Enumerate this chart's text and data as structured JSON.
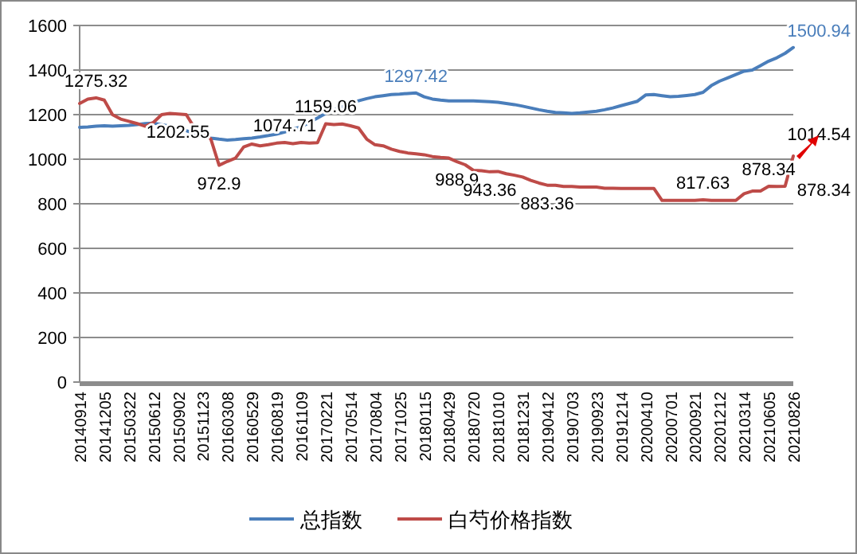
{
  "chart_data": {
    "type": "line",
    "categories": [
      "20140914",
      null,
      null,
      "20141205",
      null,
      null,
      "20150322",
      null,
      null,
      "20150612",
      null,
      null,
      "20150902",
      null,
      null,
      "20151123",
      null,
      null,
      "20160308",
      null,
      null,
      "20160529",
      null,
      null,
      "20160819",
      null,
      null,
      "20161109",
      null,
      null,
      "20170221",
      null,
      null,
      "20170514",
      null,
      null,
      "20170804",
      null,
      null,
      "20171025",
      null,
      null,
      "20180115",
      null,
      null,
      "20180429",
      null,
      null,
      "20180720",
      null,
      null,
      "20181010",
      null,
      null,
      "20181231",
      null,
      null,
      "20190412",
      null,
      null,
      "20190703",
      null,
      null,
      "20190923",
      null,
      null,
      "20191214",
      null,
      null,
      "20200410",
      null,
      null,
      "20200701",
      null,
      null,
      "20200921",
      null,
      null,
      "20201212",
      null,
      null,
      "20210314",
      null,
      null,
      "20210605",
      null,
      null,
      "20210826"
    ],
    "series": [
      {
        "name": "总指数",
        "color": "#4a7ebb",
        "values": [
          1143,
          1145,
          1148,
          1150,
          1148,
          1150,
          1152,
          1155,
          1160,
          1162,
          1155,
          1148,
          1140,
          1128,
          1115,
          1105,
          1095,
          1090,
          1086,
          1088,
          1092,
          1095,
          1100,
          1106,
          1112,
          1122,
          1135,
          1145,
          1165,
          1185,
          1205,
          1220,
          1235,
          1250,
          1262,
          1272,
          1280,
          1285,
          1290,
          1292,
          1295,
          1297.42,
          1280,
          1270,
          1265,
          1262,
          1262,
          1262,
          1262,
          1260,
          1258,
          1255,
          1250,
          1245,
          1238,
          1230,
          1222,
          1215,
          1210,
          1208,
          1205,
          1208,
          1212,
          1215,
          1222,
          1230,
          1240,
          1250,
          1260,
          1288,
          1290,
          1285,
          1280,
          1282,
          1286,
          1290,
          1300,
          1330,
          1350,
          1365,
          1380,
          1395,
          1400,
          1420,
          1440,
          1455,
          1475,
          1500.94
        ],
        "value_labels": [
          null,
          null,
          null,
          null,
          null,
          null,
          null,
          null,
          null,
          null,
          null,
          null,
          null,
          null,
          null,
          null,
          null,
          null,
          null,
          null,
          null,
          null,
          null,
          null,
          null,
          null,
          null,
          null,
          null,
          null,
          null,
          null,
          null,
          null,
          null,
          null,
          null,
          null,
          null,
          null,
          null,
          "1297.42",
          null,
          null,
          null,
          null,
          null,
          null,
          null,
          null,
          null,
          null,
          null,
          null,
          null,
          null,
          null,
          null,
          null,
          null,
          null,
          null,
          null,
          null,
          null,
          null,
          null,
          null,
          null,
          null,
          null,
          null,
          null,
          null,
          null,
          null,
          null,
          null,
          null,
          null,
          null,
          null,
          null,
          null,
          null,
          null,
          null,
          "1500.94"
        ]
      },
      {
        "name": "白芍价格指数",
        "color": "#be4b48",
        "values": [
          1250,
          1270,
          1275.32,
          1265,
          1200,
          1180,
          1170,
          1160,
          1148,
          1165,
          1200,
          1205,
          1202.55,
          1200,
          1140,
          1120,
          1090,
          972.9,
          990,
          1005,
          1055,
          1068,
          1060,
          1065,
          1072,
          1074.71,
          1070,
          1075,
          1072,
          1074,
          1159.06,
          1155,
          1158,
          1150,
          1140,
          1090,
          1065,
          1060,
          1045,
          1035,
          1028,
          1024,
          1020,
          1012,
          1008,
          1005,
          988.9,
          975,
          950,
          948,
          943.36,
          945,
          935,
          928,
          920,
          905,
          893,
          883.36,
          883,
          878,
          878,
          875,
          875,
          875,
          870,
          870,
          869,
          869,
          869,
          869,
          869,
          815,
          815,
          815,
          815,
          815,
          817.63,
          815,
          815,
          815,
          815,
          845,
          857,
          857,
          878.34,
          878,
          878.34,
          1014.54
        ],
        "value_labels": [
          null,
          null,
          "1275.32",
          null,
          null,
          null,
          null,
          null,
          null,
          null,
          null,
          null,
          "1202.55",
          null,
          null,
          null,
          null,
          "972.9",
          null,
          null,
          null,
          null,
          null,
          null,
          null,
          "1074.71",
          null,
          null,
          null,
          null,
          "1159.06",
          null,
          null,
          null,
          null,
          null,
          null,
          null,
          null,
          null,
          null,
          null,
          null,
          null,
          null,
          null,
          "988.9",
          null,
          null,
          null,
          "943.36",
          null,
          null,
          null,
          null,
          null,
          null,
          "883.36",
          null,
          null,
          null,
          null,
          null,
          null,
          null,
          null,
          null,
          null,
          null,
          null,
          null,
          null,
          null,
          null,
          null,
          null,
          "817.63",
          null,
          null,
          null,
          null,
          null,
          null,
          null,
          "878.34",
          null,
          "878.34",
          "1014.54"
        ]
      }
    ],
    "ylim": [
      0,
      1600
    ],
    "yticks": [
      0,
      200,
      400,
      600,
      800,
      1000,
      1200,
      1400,
      1600
    ],
    "grid": "y",
    "legend": "bottom",
    "marker": "none",
    "line_style": "solid"
  }
}
